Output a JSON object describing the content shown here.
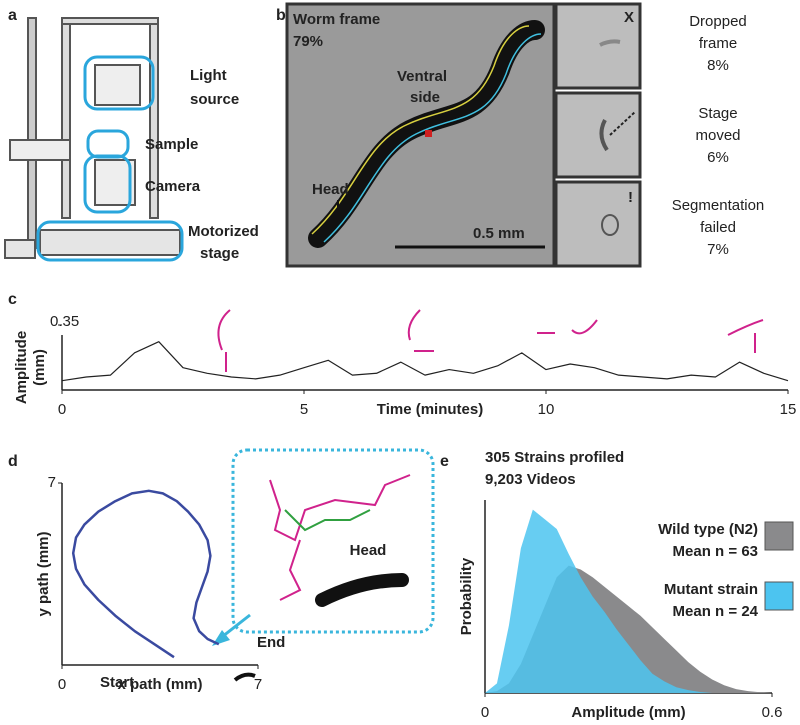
{
  "panels": {
    "a": {
      "label": "a",
      "callouts": [
        [
          "Light",
          "source"
        ],
        [
          "Sample"
        ],
        [
          "Camera"
        ],
        [
          "Motorized",
          "stage"
        ]
      ]
    },
    "b": {
      "label": "b",
      "frame": [
        "Worm frame",
        "79%"
      ],
      "ventral": [
        "Ventral",
        "side"
      ],
      "head": "Head",
      "scale": "0.5 mm",
      "marks": [
        "X",
        "!"
      ],
      "outcomes": [
        [
          "Dropped",
          "frame",
          "8%"
        ],
        [
          "Stage",
          "moved",
          "6%"
        ],
        [
          "Segmentation",
          "failed",
          "7%"
        ]
      ]
    }
  },
  "chart_data": [
    {
      "type": "line",
      "label": "c",
      "x_label": "Time (minutes)",
      "y_label": [
        "Amplitude",
        "(mm)"
      ],
      "x": [
        0,
        0.5,
        1,
        1.5,
        2,
        2.5,
        3,
        3.5,
        4,
        4.5,
        5,
        5.5,
        6,
        6.5,
        7,
        7.5,
        8,
        8.5,
        9,
        9.5,
        10,
        10.5,
        11,
        11.5,
        12,
        12.5,
        13,
        13.5,
        14,
        14.5,
        15
      ],
      "series": [
        {
          "color": "#222222",
          "values": [
            0.05,
            0.07,
            0.08,
            0.2,
            0.26,
            0.12,
            0.09,
            0.07,
            0.06,
            0.08,
            0.12,
            0.16,
            0.08,
            0.09,
            0.15,
            0.08,
            0.11,
            0.09,
            0.13,
            0.2,
            0.11,
            0.14,
            0.12,
            0.08,
            0.07,
            0.06,
            0.08,
            0.07,
            0.15,
            0.09,
            0.05
          ]
        }
      ],
      "xlim": [
        0,
        15
      ],
      "ylim": [
        0,
        0.35
      ],
      "xticks": [
        0,
        5,
        10,
        15
      ],
      "yticks": [
        0.35
      ]
    },
    {
      "type": "line",
      "label": "d",
      "x_label": "x path (mm)",
      "y_label": "y path (mm)",
      "annotations": [
        "Start",
        "End",
        "Head"
      ],
      "series": [
        {
          "color": "#3a4aa0",
          "x": [
            4.0,
            3.3,
            2.6,
            1.9,
            1.3,
            0.8,
            0.5,
            0.4,
            0.5,
            0.8,
            1.3,
            1.9,
            2.5,
            3.1,
            3.6,
            4.1,
            4.5,
            4.9,
            5.2,
            5.3,
            5.2,
            5.0,
            4.8,
            4.7,
            4.9,
            5.2,
            5.6
          ],
          "values": [
            0.3,
            0.8,
            1.3,
            1.9,
            2.5,
            3.1,
            3.7,
            4.3,
            4.9,
            5.4,
            5.9,
            6.3,
            6.6,
            6.7,
            6.6,
            6.3,
            5.9,
            5.4,
            4.8,
            4.2,
            3.6,
            3.0,
            2.4,
            1.8,
            1.3,
            1.0,
            0.8
          ]
        }
      ],
      "xlim": [
        0,
        7
      ],
      "ylim": [
        0,
        7
      ],
      "xticks": [
        0,
        7
      ],
      "yticks": [
        7
      ]
    },
    {
      "type": "area",
      "label": "e",
      "title": "305 Strains profiled",
      "subtitle": "9,203 Videos",
      "x_label": "Amplitude (mm)",
      "y_label": "Probability",
      "x": [
        0,
        0.025,
        0.05,
        0.075,
        0.1,
        0.125,
        0.15,
        0.175,
        0.2,
        0.225,
        0.25,
        0.275,
        0.3,
        0.325,
        0.35,
        0.375,
        0.4,
        0.425,
        0.45,
        0.475,
        0.5,
        0.525,
        0.55,
        0.575,
        0.6
      ],
      "series": [
        {
          "name": "Wild type (N2)",
          "mean_label": "Mean n = 63",
          "color": "#8a8a8c",
          "values": [
            0,
            0.01,
            0.05,
            0.15,
            0.3,
            0.45,
            0.6,
            0.66,
            0.64,
            0.6,
            0.55,
            0.5,
            0.45,
            0.4,
            0.34,
            0.28,
            0.22,
            0.16,
            0.11,
            0.07,
            0.04,
            0.02,
            0.01,
            0.004,
            0
          ]
        },
        {
          "name": "Mutant strain",
          "mean_label": "Mean n = 24",
          "color": "#4cc4f0",
          "values": [
            0,
            0.05,
            0.35,
            0.75,
            0.95,
            0.9,
            0.85,
            0.72,
            0.6,
            0.5,
            0.42,
            0.33,
            0.25,
            0.17,
            0.1,
            0.06,
            0.03,
            0.015,
            0.005,
            0,
            0,
            0,
            0,
            0,
            0
          ]
        }
      ],
      "xlim": [
        0,
        0.6
      ],
      "ylim": [
        0,
        1
      ],
      "xticks": [
        0,
        0.6
      ]
    }
  ]
}
